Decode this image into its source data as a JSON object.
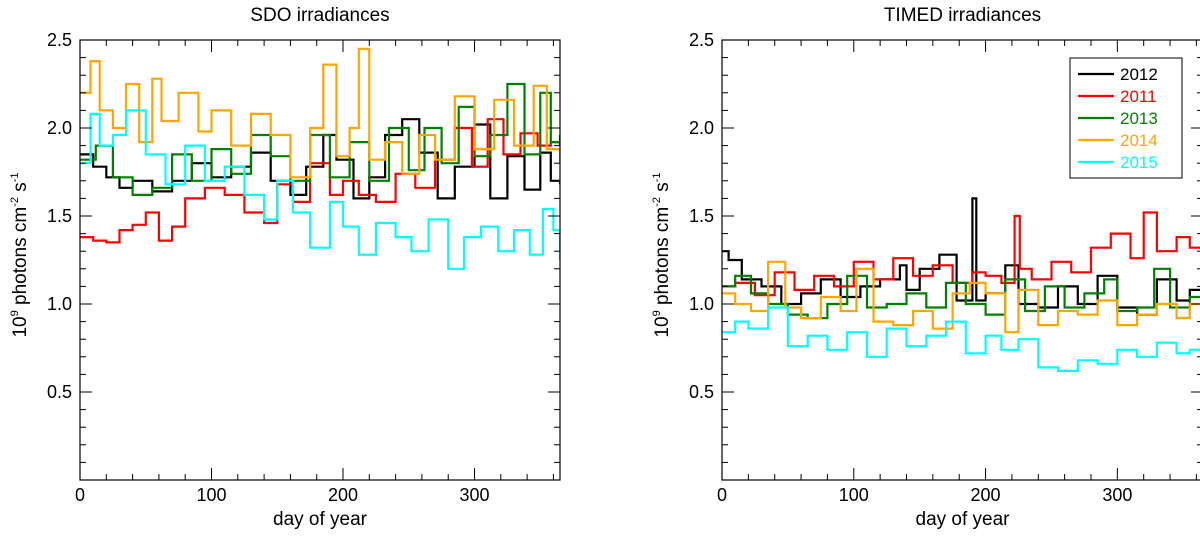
{
  "chart_data": [
    {
      "type": "line",
      "title": "SDO irradiances",
      "xlabel": "day of year",
      "ylabel": {
        "base": "10",
        "base_exp": "9",
        "mid": " photons cm",
        "cm_exp": "-2",
        "s": " s",
        "s_exp": "-1"
      },
      "xlim": [
        0,
        365
      ],
      "ylim": [
        0,
        2.5
      ],
      "xticks": [
        0,
        100,
        200,
        300
      ],
      "xtick_labels": [
        "0",
        "100",
        "200",
        "300"
      ],
      "yticks": [
        0.5,
        1.0,
        1.5,
        2.0,
        2.5
      ],
      "ytick_labels": [
        "0.5",
        "1.0",
        "1.5",
        "2.0",
        "2.5"
      ],
      "legend": "none",
      "series": [
        {
          "name": "2012",
          "color": "#000000",
          "x": [
            0,
            10,
            20,
            30,
            40,
            55,
            70,
            85,
            100,
            115,
            130,
            145,
            160,
            172,
            185,
            195,
            208,
            220,
            232,
            245,
            258,
            272,
            285,
            300,
            312,
            325,
            338,
            350,
            358,
            365
          ],
          "y": [
            1.85,
            1.78,
            1.72,
            1.66,
            1.7,
            1.64,
            1.7,
            1.8,
            1.72,
            1.78,
            1.86,
            1.7,
            1.62,
            1.78,
            1.96,
            1.82,
            1.6,
            1.72,
            1.96,
            2.05,
            1.86,
            1.6,
            1.78,
            2.02,
            1.6,
            1.84,
            1.65,
            1.86,
            1.7,
            1.68
          ]
        },
        {
          "name": "2011",
          "color": "#ff0000",
          "x": [
            0,
            10,
            20,
            30,
            40,
            50,
            60,
            70,
            80,
            95,
            110,
            125,
            140,
            150,
            162,
            175,
            190,
            200,
            212,
            225,
            240,
            255,
            270,
            285,
            298,
            310,
            322,
            335,
            348,
            358,
            365
          ],
          "y": [
            1.38,
            1.36,
            1.35,
            1.42,
            1.45,
            1.52,
            1.36,
            1.44,
            1.6,
            1.66,
            1.62,
            1.52,
            1.46,
            1.68,
            1.58,
            1.8,
            1.62,
            1.7,
            1.62,
            1.58,
            1.74,
            1.66,
            1.82,
            2.0,
            1.78,
            2.05,
            1.85,
            1.97,
            1.9,
            1.92,
            1.9
          ]
        },
        {
          "name": "2013",
          "color": "#008000",
          "x": [
            0,
            12,
            25,
            40,
            55,
            70,
            85,
            100,
            115,
            130,
            145,
            160,
            175,
            190,
            205,
            220,
            235,
            250,
            262,
            275,
            288,
            300,
            312,
            325,
            338,
            350,
            358,
            365
          ],
          "y": [
            1.82,
            1.9,
            1.72,
            1.62,
            1.66,
            1.85,
            1.7,
            1.88,
            1.74,
            1.96,
            1.84,
            1.7,
            1.96,
            1.72,
            1.92,
            1.7,
            2.0,
            1.76,
            2.0,
            1.8,
            2.12,
            1.84,
            1.96,
            2.25,
            1.85,
            2.2,
            1.92,
            1.96
          ]
        },
        {
          "name": "2014",
          "color": "#ffa500",
          "x": [
            0,
            8,
            15,
            25,
            35,
            45,
            55,
            62,
            75,
            90,
            100,
            115,
            130,
            145,
            160,
            175,
            185,
            195,
            205,
            212,
            220,
            232,
            245,
            258,
            270,
            285,
            300,
            315,
            330,
            345,
            355,
            365
          ],
          "y": [
            2.2,
            2.38,
            2.1,
            2.0,
            2.25,
            1.92,
            2.28,
            2.04,
            2.2,
            1.98,
            2.1,
            1.9,
            2.08,
            1.96,
            1.72,
            2.0,
            2.36,
            1.84,
            2.0,
            2.45,
            1.82,
            1.92,
            1.74,
            1.96,
            1.82,
            2.18,
            1.88,
            2.16,
            1.9,
            2.24,
            1.88,
            1.8
          ]
        },
        {
          "name": "2015",
          "color": "#00ffff",
          "x": [
            0,
            8,
            15,
            25,
            35,
            50,
            65,
            80,
            95,
            110,
            125,
            140,
            150,
            162,
            175,
            190,
            200,
            212,
            225,
            240,
            252,
            265,
            280,
            292,
            305,
            318,
            330,
            342,
            352,
            360,
            365
          ],
          "y": [
            1.8,
            2.08,
            1.9,
            1.96,
            2.1,
            1.85,
            1.68,
            1.9,
            1.7,
            1.78,
            1.62,
            1.48,
            1.7,
            1.52,
            1.32,
            1.58,
            1.44,
            1.28,
            1.46,
            1.38,
            1.3,
            1.48,
            1.2,
            1.38,
            1.44,
            1.3,
            1.42,
            1.28,
            1.54,
            1.42,
            1.25
          ]
        }
      ]
    },
    {
      "type": "line",
      "title": "TIMED irradiances",
      "xlabel": "day of year",
      "ylabel": {
        "base": "10",
        "base_exp": "9",
        "mid": " photons cm",
        "cm_exp": "-2",
        "s": " s",
        "s_exp": "-1"
      },
      "xlim": [
        0,
        365
      ],
      "ylim": [
        0,
        2.5
      ],
      "xticks": [
        0,
        100,
        200,
        300
      ],
      "xtick_labels": [
        "0",
        "100",
        "200",
        "300"
      ],
      "yticks": [
        0.5,
        1.0,
        1.5,
        2.0,
        2.5
      ],
      "ytick_labels": [
        "0.5",
        "1.0",
        "1.5",
        "2.0",
        "2.5"
      ],
      "legend": "top-right",
      "series": [
        {
          "name": "2012",
          "color": "#000000",
          "x": [
            0,
            5,
            15,
            30,
            45,
            60,
            75,
            90,
            105,
            120,
            135,
            140,
            150,
            165,
            178,
            190,
            193,
            200,
            215,
            225,
            240,
            255,
            270,
            285,
            300,
            315,
            330,
            345,
            355,
            365
          ],
          "y": [
            1.3,
            1.25,
            1.14,
            1.1,
            1.0,
            1.06,
            1.14,
            1.04,
            1.1,
            1.14,
            1.22,
            1.08,
            1.2,
            1.28,
            1.02,
            1.6,
            1.02,
            1.06,
            1.22,
            1.0,
            0.98,
            1.1,
            1.0,
            1.16,
            0.98,
            0.94,
            1.14,
            1.02,
            1.08,
            1.05
          ]
        },
        {
          "name": "2011",
          "color": "#ff0000",
          "x": [
            0,
            10,
            25,
            40,
            55,
            70,
            85,
            100,
            115,
            130,
            145,
            160,
            175,
            190,
            200,
            212,
            222,
            226,
            235,
            250,
            265,
            280,
            295,
            310,
            320,
            330,
            345,
            355,
            365
          ],
          "y": [
            1.1,
            1.12,
            1.05,
            1.18,
            1.08,
            1.16,
            1.1,
            1.24,
            1.14,
            1.26,
            1.16,
            1.22,
            1.12,
            1.18,
            1.16,
            1.12,
            1.5,
            1.2,
            1.14,
            1.24,
            1.18,
            1.32,
            1.4,
            1.26,
            1.52,
            1.3,
            1.38,
            1.32,
            1.28
          ]
        },
        {
          "name": "2013",
          "color": "#008000",
          "x": [
            0,
            10,
            22,
            35,
            50,
            65,
            80,
            95,
            110,
            125,
            140,
            155,
            170,
            185,
            200,
            215,
            230,
            245,
            260,
            275,
            290,
            300,
            315,
            328,
            340,
            355,
            365
          ],
          "y": [
            1.1,
            1.16,
            1.06,
            1.0,
            0.94,
            0.92,
            1.0,
            1.16,
            0.98,
            1.0,
            1.06,
            0.98,
            1.12,
            1.0,
            0.94,
            1.14,
            0.96,
            1.1,
            0.98,
            1.06,
            1.14,
            0.96,
            0.98,
            1.2,
            0.98,
            1.04,
            1.02
          ]
        },
        {
          "name": "2014",
          "color": "#ffa500",
          "x": [
            0,
            10,
            22,
            35,
            48,
            60,
            75,
            90,
            102,
            115,
            130,
            145,
            160,
            175,
            188,
            200,
            215,
            225,
            240,
            255,
            270,
            285,
            300,
            315,
            330,
            345,
            355,
            365
          ],
          "y": [
            1.06,
            1.0,
            0.96,
            1.24,
            0.98,
            0.92,
            1.04,
            0.96,
            1.2,
            0.9,
            0.88,
            0.96,
            0.86,
            1.06,
            1.12,
            1.06,
            0.84,
            1.08,
            0.88,
            0.96,
            0.94,
            1.02,
            0.88,
            0.94,
            1.0,
            0.92,
            1.0,
            0.84
          ]
        },
        {
          "name": "2015",
          "color": "#00ffff",
          "x": [
            0,
            10,
            20,
            35,
            50,
            65,
            80,
            95,
            110,
            125,
            140,
            155,
            170,
            185,
            200,
            212,
            225,
            240,
            255,
            270,
            285,
            300,
            315,
            330,
            345,
            355,
            365
          ],
          "y": [
            0.84,
            0.9,
            0.86,
            0.98,
            0.76,
            0.82,
            0.74,
            0.84,
            0.7,
            0.86,
            0.76,
            0.82,
            0.9,
            0.72,
            0.82,
            0.74,
            0.8,
            0.64,
            0.62,
            0.68,
            0.66,
            0.74,
            0.7,
            0.78,
            0.72,
            0.74,
            0.68
          ]
        }
      ]
    }
  ]
}
